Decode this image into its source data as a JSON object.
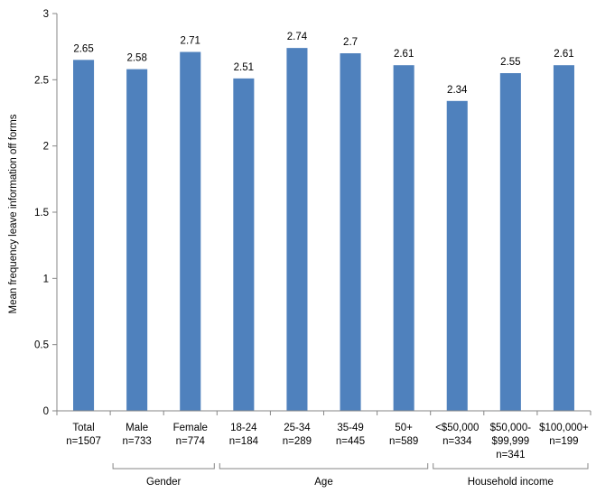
{
  "chart_data": {
    "type": "bar",
    "title": "",
    "ylabel": "Mean frequency leave information off forms",
    "xlabel": "",
    "ylim": [
      0,
      3
    ],
    "yticks": [
      "0",
      "0.5",
      "1",
      "1.5",
      "2",
      "2.5",
      "3"
    ],
    "grid": false,
    "bar_color": "#4f81bd",
    "categories": [
      {
        "label": "Total",
        "n": "n=1507"
      },
      {
        "label": "Male",
        "n": "n=733"
      },
      {
        "label": "Female",
        "n": "n=774"
      },
      {
        "label": "18-24",
        "n": "n=184"
      },
      {
        "label": "25-34",
        "n": "n=289"
      },
      {
        "label": "35-49",
        "n": "n=445"
      },
      {
        "label": "50+",
        "n": "n=589"
      },
      {
        "label": "<$50,000",
        "n": "n=334"
      },
      {
        "label": "$50,000-",
        "label2": "$99,999",
        "n": "n=341"
      },
      {
        "label": "$100,000+",
        "n": "n=199"
      }
    ],
    "values": [
      2.65,
      2.58,
      2.71,
      2.51,
      2.74,
      2.7,
      2.61,
      2.34,
      2.55,
      2.61
    ],
    "value_labels": [
      "2.65",
      "2.58",
      "2.71",
      "2.51",
      "2.74",
      "2.7",
      "2.61",
      "2.34",
      "2.55",
      "2.61"
    ],
    "groups": [
      {
        "name": "Gender",
        "from": 1,
        "to": 2
      },
      {
        "name": "Age",
        "from": 3,
        "to": 6
      },
      {
        "name": "Household income",
        "from": 7,
        "to": 9
      }
    ]
  }
}
